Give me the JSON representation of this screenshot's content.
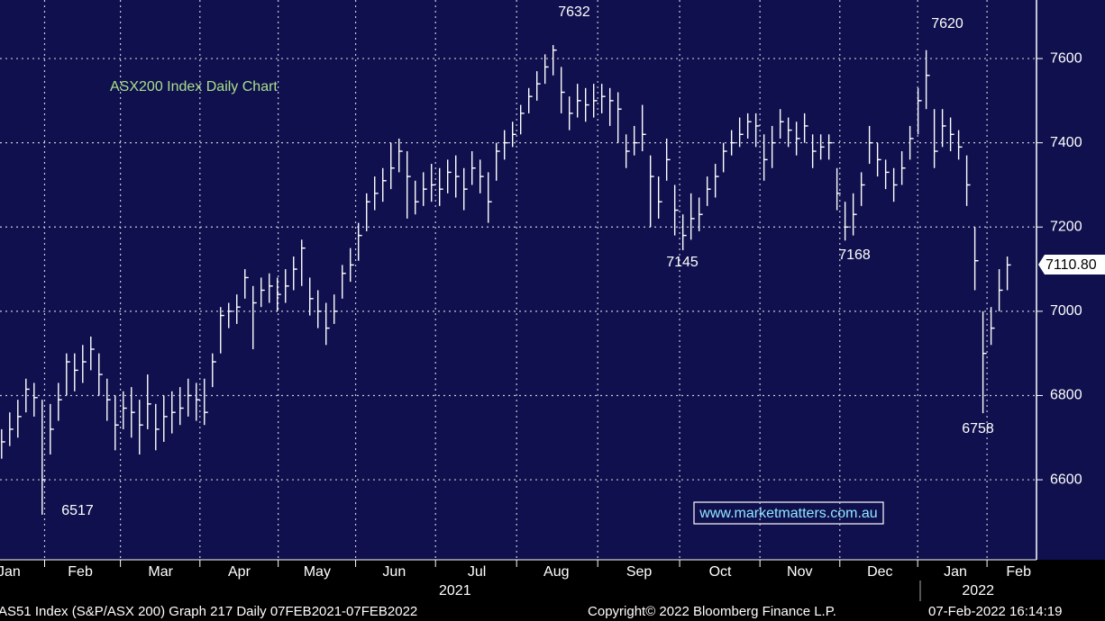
{
  "chart_data": {
    "type": "ohlc",
    "title": "ASX200 Index Daily Chart",
    "watermark": "www.marketmatters.com.au",
    "footer": [
      "AS51 Index (S&P/ASX 200) Graph 217  Daily 07FEB2021-07FEB2022",
      "Copyright© 2022 Bloomberg Finance L.P.",
      "07-Feb-2022 16:14:19"
    ],
    "annotations": [
      "7632",
      "6517",
      "7145",
      "7168",
      "7620",
      "6758"
    ],
    "last_price": {
      "value": 7110.8,
      "label": "7110.80"
    },
    "ylim": [
      6410,
      7739
    ],
    "yticks": [
      6600,
      6800,
      7000,
      7200,
      7400,
      7600
    ],
    "xlim": [
      -0.2,
      127.6
    ],
    "xticks": [
      {
        "value": 0.9,
        "label": "Jan"
      },
      {
        "value": 9.7,
        "label": "Feb"
      },
      {
        "value": 19.6,
        "label": "Mar"
      },
      {
        "value": 29.3,
        "label": "Apr"
      },
      {
        "value": 38.9,
        "label": "May"
      },
      {
        "value": 48.4,
        "label": "Jun"
      },
      {
        "value": 58.6,
        "label": "Jul"
      },
      {
        "value": 68.4,
        "label": "Aug"
      },
      {
        "value": 78.6,
        "label": "Sep"
      },
      {
        "value": 88.6,
        "label": "Oct"
      },
      {
        "value": 98.4,
        "label": "Nov"
      },
      {
        "value": 108.3,
        "label": "Dec"
      },
      {
        "value": 117.6,
        "label": "Jan"
      },
      {
        "value": 125.4,
        "label": "Feb"
      }
    ],
    "year_ticks": [
      {
        "value": 55.9,
        "label": "2021"
      },
      {
        "value": 120.4,
        "label": "2022"
      }
    ],
    "grid": true,
    "color": "#ffffff",
    "close": [
      6690,
      6720,
      6750,
      6815,
      6795,
      6600,
      6720,
      6790,
      6880,
      6860,
      6880,
      6910,
      6850,
      6790,
      6730,
      6770,
      6760,
      6730,
      6780,
      6720,
      6750,
      6760,
      6770,
      6800,
      6790,
      6760,
      6880,
      6990,
      7000,
      7010,
      7080,
      7020,
      7050,
      7060,
      7040,
      7060,
      7100,
      7150,
      7030,
      7000,
      6960,
      7000,
      7090,
      7110,
      7180,
      7260,
      7280,
      7310,
      7340,
      7380,
      7320,
      7260,
      7290,
      7300,
      7290,
      7330,
      7320,
      7290,
      7340,
      7320,
      7260,
      7380,
      7400,
      7420,
      7470,
      7510,
      7540,
      7580,
      7620,
      7520,
      7470,
      7500,
      7490,
      7500,
      7510,
      7500,
      7480,
      7380,
      7400,
      7420,
      7320,
      7260,
      7360,
      7240,
      7180,
      7220,
      7230,
      7290,
      7320,
      7380,
      7400,
      7420,
      7450,
      7440,
      7360,
      7400,
      7450,
      7430,
      7410,
      7440,
      7380,
      7390,
      7400,
      7280,
      7200,
      7230,
      7300,
      7400,
      7360,
      7330,
      7300,
      7340,
      7410,
      7500,
      7560,
      7380,
      7440,
      7420,
      7390,
      7300,
      7120,
      6900,
      6960,
      7050,
      7110
    ],
    "high": [
      6720,
      6760,
      6790,
      6840,
      6830,
      6790,
      6780,
      6830,
      6900,
      6900,
      6920,
      6940,
      6900,
      6840,
      6800,
      6810,
      6820,
      6790,
      6850,
      6780,
      6800,
      6810,
      6820,
      6840,
      6830,
      6840,
      6900,
      7010,
      7020,
      7040,
      7100,
      7060,
      7080,
      7090,
      7080,
      7100,
      7130,
      7170,
      7080,
      7050,
      7020,
      7040,
      7110,
      7150,
      7210,
      7280,
      7320,
      7340,
      7400,
      7410,
      7380,
      7310,
      7330,
      7350,
      7340,
      7360,
      7370,
      7340,
      7380,
      7360,
      7330,
      7400,
      7430,
      7450,
      7490,
      7530,
      7570,
      7610,
      7632,
      7580,
      7510,
      7540,
      7530,
      7540,
      7540,
      7530,
      7520,
      7420,
      7440,
      7490,
      7370,
      7320,
      7410,
      7300,
      7230,
      7280,
      7270,
      7320,
      7350,
      7400,
      7430,
      7460,
      7470,
      7470,
      7420,
      7440,
      7480,
      7460,
      7450,
      7470,
      7420,
      7420,
      7420,
      7340,
      7260,
      7280,
      7330,
      7440,
      7400,
      7360,
      7340,
      7380,
      7440,
      7530,
      7620,
      7480,
      7480,
      7460,
      7430,
      7370,
      7200,
      7000,
      7010,
      7100,
      7130
    ],
    "low": [
      6650,
      6680,
      6700,
      6760,
      6750,
      6517,
      6660,
      6740,
      6800,
      6810,
      6830,
      6860,
      6800,
      6740,
      6670,
      6720,
      6700,
      6660,
      6720,
      6670,
      6690,
      6710,
      6730,
      6750,
      6740,
      6730,
      6820,
      6900,
      6960,
      6970,
      7030,
      6910,
      7010,
      7020,
      7000,
      7020,
      7050,
      7060,
      6990,
      6960,
      6920,
      6970,
      7030,
      7070,
      7120,
      7190,
      7240,
      7260,
      7290,
      7330,
      7220,
      7230,
      7250,
      7260,
      7250,
      7280,
      7270,
      7240,
      7300,
      7280,
      7210,
      7310,
      7360,
      7390,
      7420,
      7470,
      7500,
      7540,
      7560,
      7470,
      7430,
      7460,
      7450,
      7460,
      7470,
      7440,
      7400,
      7340,
      7370,
      7380,
      7200,
      7220,
      7310,
      7180,
      7145,
      7170,
      7190,
      7250,
      7270,
      7330,
      7370,
      7390,
      7410,
      7390,
      7310,
      7340,
      7410,
      7390,
      7370,
      7400,
      7340,
      7360,
      7360,
      7240,
      7168,
      7180,
      7250,
      7350,
      7320,
      7290,
      7260,
      7300,
      7360,
      7420,
      7480,
      7340,
      7390,
      7380,
      7360,
      7250,
      7050,
      6758,
      6920,
      7000,
      7050
    ]
  }
}
